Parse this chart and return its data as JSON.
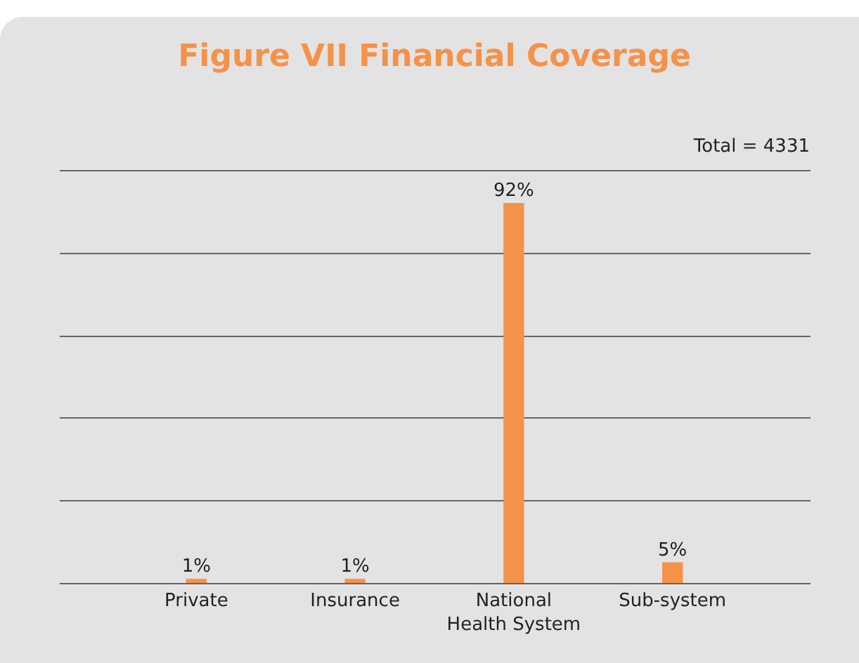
{
  "chart_data": {
    "type": "bar",
    "title": "Figure VII     Financial Coverage",
    "categories": [
      "Private",
      "Insurance",
      "National Health System",
      "Sub-system"
    ],
    "values": [
      1,
      1,
      92,
      5
    ],
    "color": "#f5924a",
    "value_labels": [
      "1%",
      "1%",
      "92%",
      "5%"
    ],
    "annotations": [
      "Total = 4331"
    ],
    "ylim": [
      0,
      100
    ],
    "yticks": [
      {
        "value": 0,
        "label": null
      },
      {
        "value": 20,
        "label": null
      },
      {
        "value": 40,
        "label": null
      },
      {
        "value": 60,
        "label": null
      },
      {
        "value": 80,
        "label": null
      },
      {
        "value": 100,
        "label": null
      }
    ],
    "grid": "y",
    "tick_labels": "x"
  }
}
